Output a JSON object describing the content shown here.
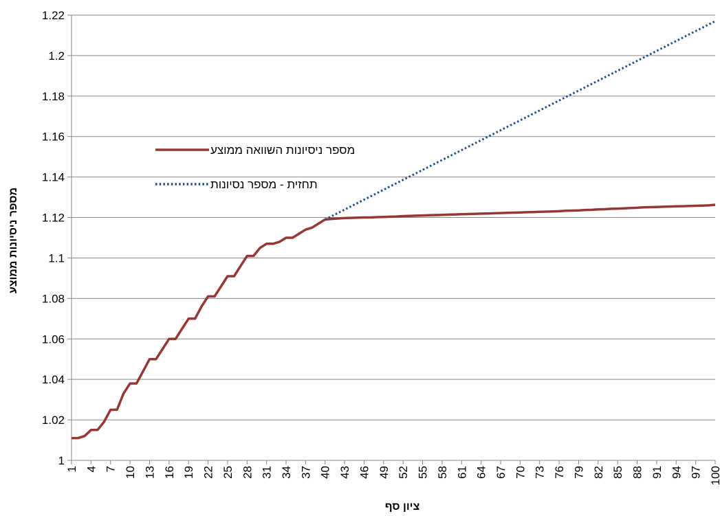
{
  "chart_data": {
    "type": "line",
    "title": "",
    "xlabel": "ציון סף",
    "ylabel": "מספר ניסיונות ממוצע",
    "ylim": [
      1,
      1.22
    ],
    "yticks": [
      1,
      1.02,
      1.04,
      1.06,
      1.08,
      1.1,
      1.12,
      1.14,
      1.16,
      1.18,
      1.2,
      1.22
    ],
    "ytick_labels": [
      "1",
      "1.02",
      "1.04",
      "1.06",
      "1.08",
      "1.1",
      "1.12",
      "1.14",
      "1.16",
      "1.18",
      "1.2",
      "1.22"
    ],
    "xlim": [
      1,
      100
    ],
    "xtick_labels": [
      "1",
      "4",
      "7",
      "10",
      "13",
      "16",
      "19",
      "22",
      "25",
      "28",
      "31",
      "34",
      "37",
      "40",
      "43",
      "46",
      "49",
      "52",
      "55",
      "58",
      "61",
      "64",
      "67",
      "70",
      "73",
      "76",
      "79",
      "82",
      "85",
      "88",
      "91",
      "94",
      "97",
      "100"
    ],
    "grid": "horizontal",
    "legend_position": "left-middle",
    "series": [
      {
        "name": "מספר ניסיונות השוואה ממוצע",
        "color": "#953735",
        "style": "solid",
        "x": [
          1,
          2,
          3,
          4,
          5,
          6,
          7,
          8,
          9,
          10,
          11,
          12,
          13,
          14,
          15,
          16,
          17,
          18,
          19,
          20,
          21,
          22,
          23,
          24,
          25,
          26,
          27,
          28,
          29,
          30,
          31,
          32,
          33,
          34,
          35,
          36,
          37,
          38,
          39,
          40,
          41,
          42,
          43,
          44,
          45,
          46,
          47,
          48,
          49,
          50,
          51,
          52,
          53,
          54,
          55,
          56,
          57,
          58,
          59,
          60,
          61,
          62,
          63,
          64,
          65,
          66,
          67,
          68,
          69,
          70,
          71,
          72,
          73,
          74,
          75,
          76,
          77,
          78,
          79,
          80,
          81,
          82,
          83,
          84,
          85,
          86,
          87,
          88,
          89,
          90,
          91,
          92,
          93,
          94,
          95,
          96,
          97,
          98,
          99,
          100
        ],
        "values": [
          1.011,
          1.011,
          1.012,
          1.015,
          1.015,
          1.019,
          1.025,
          1.025,
          1.033,
          1.038,
          1.038,
          1.044,
          1.05,
          1.05,
          1.055,
          1.06,
          1.06,
          1.065,
          1.07,
          1.07,
          1.076,
          1.081,
          1.081,
          1.086,
          1.091,
          1.091,
          1.096,
          1.101,
          1.101,
          1.105,
          1.107,
          1.107,
          1.108,
          1.11,
          1.11,
          1.112,
          1.114,
          1.115,
          1.117,
          1.119,
          1.1193,
          1.1195,
          1.1197,
          1.1198,
          1.1199,
          1.12,
          1.12,
          1.1202,
          1.1203,
          1.1204,
          1.1205,
          1.1207,
          1.1208,
          1.1209,
          1.121,
          1.1211,
          1.1212,
          1.1213,
          1.1214,
          1.1215,
          1.1216,
          1.1217,
          1.1218,
          1.1219,
          1.122,
          1.1221,
          1.1222,
          1.1223,
          1.1224,
          1.1225,
          1.1226,
          1.1227,
          1.1228,
          1.1229,
          1.123,
          1.1231,
          1.1233,
          1.1234,
          1.1235,
          1.1237,
          1.1238,
          1.124,
          1.1241,
          1.1243,
          1.1244,
          1.1245,
          1.1247,
          1.1248,
          1.125,
          1.1251,
          1.1252,
          1.1253,
          1.1254,
          1.1255,
          1.1256,
          1.1257,
          1.1258,
          1.1259,
          1.126,
          1.1263
        ]
      },
      {
        "name": "תחזית -  מספר נסיונות",
        "color": "#1f4e8c",
        "style": "dotted",
        "x": [
          40,
          100
        ],
        "values": [
          1.119,
          1.217
        ]
      }
    ]
  }
}
